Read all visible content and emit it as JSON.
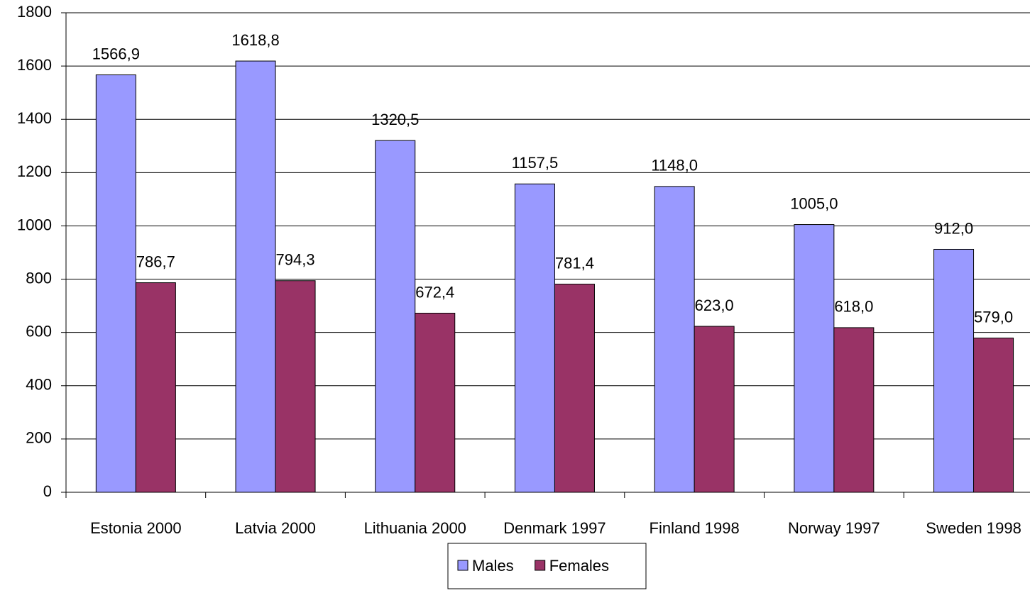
{
  "chart_data": {
    "type": "bar",
    "categories": [
      "Estonia 2000",
      "Latvia 2000",
      "Lithuania 2000",
      "Denmark 1997",
      "Finland 1998",
      "Norway 1997",
      "Sweden 1998"
    ],
    "series": [
      {
        "name": "Males",
        "color": "#9999ff",
        "values": [
          1566.9,
          1618.8,
          1320.5,
          1157.5,
          1148.0,
          1005.0,
          912.0
        ],
        "value_labels": [
          "1566,9",
          "1618,8",
          "1320,5",
          "1157,5",
          "1148,0",
          "1005,0",
          "912,0"
        ]
      },
      {
        "name": "Females",
        "color": "#993366",
        "values": [
          786.7,
          794.3,
          672.4,
          781.4,
          623.0,
          618.0,
          579.0
        ],
        "value_labels": [
          "786,7",
          "794,3",
          "672,4",
          "781,4",
          "623,0",
          "618,0",
          "579,0"
        ]
      }
    ],
    "ylim": [
      0,
      1800
    ],
    "yticks": [
      0,
      200,
      400,
      600,
      800,
      1000,
      1200,
      1400,
      1600,
      1800
    ],
    "grid": true,
    "legend": "bottom"
  }
}
